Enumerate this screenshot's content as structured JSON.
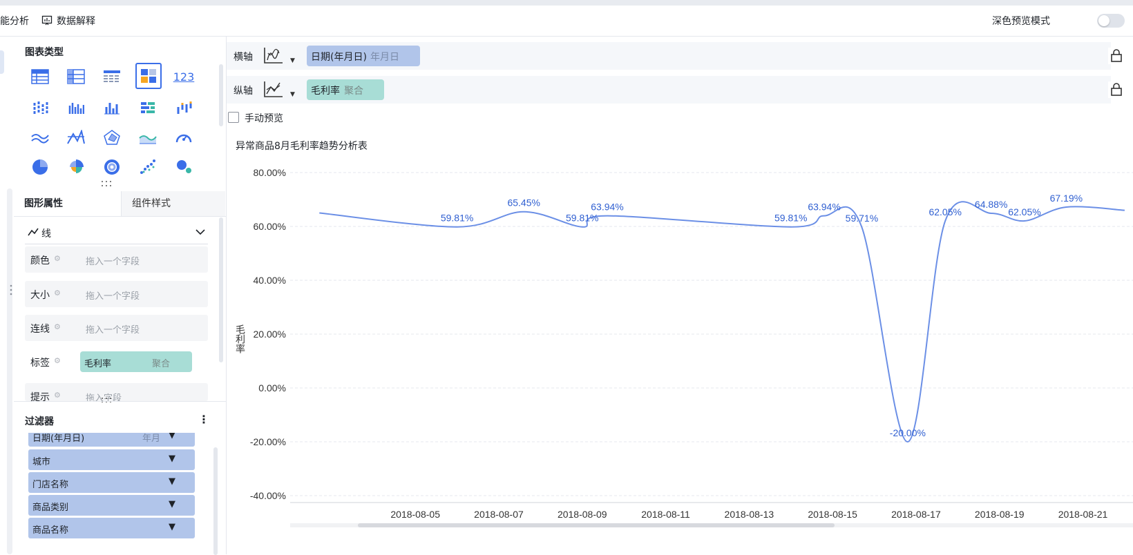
{
  "topbar": {
    "tab_analysis": "能分析",
    "data_explain": "数据解释",
    "dark_preview": "深色预览模式"
  },
  "panel": {
    "chart_type_title": "图表类型",
    "number_icon_text": "123",
    "tabs": {
      "shape_props": "图形属性",
      "component_style": "组件样式"
    },
    "mark_type": "线",
    "props": [
      {
        "label": "颜色",
        "placeholder": "拖入一个字段"
      },
      {
        "label": "大小",
        "placeholder": "拖入一个字段"
      },
      {
        "label": "连线",
        "placeholder": "拖入一个字段"
      },
      {
        "label": "标签",
        "field": "毛利率",
        "agg": "聚合"
      },
      {
        "label": "提示",
        "placeholder": "拖入字段"
      }
    ],
    "filters_title": "过滤器",
    "filters": [
      {
        "name": "日期(年月日)",
        "sub": "年月"
      },
      {
        "name": "城市"
      },
      {
        "name": "门店名称"
      },
      {
        "name": "商品类别"
      },
      {
        "name": "商品名称"
      }
    ]
  },
  "axes": {
    "x_label": "横轴",
    "x_field": "日期(年月日)",
    "x_sub": "年月日",
    "y_label": "纵轴",
    "y_field": "毛利率",
    "y_sub": "聚合"
  },
  "manual_preview": "手动预览",
  "colors": {
    "accent": "#3a6ee8",
    "line": "#6b8fe6",
    "label": "#2f5fd1",
    "x_field_bg": "#b1c5ea",
    "y_field_bg": "#a8ddd6"
  },
  "chart_data": {
    "type": "line",
    "title": "异常商品8月毛利率趋势分析表",
    "xlabel": "",
    "ylabel": "毛利率",
    "ylim": [
      -40,
      80
    ],
    "y_ticks": [
      "80.00%",
      "60.00%",
      "40.00%",
      "20.00%",
      "0.00%",
      "-20.00%",
      "-40.00%"
    ],
    "x_ticks": [
      "2018-08-05",
      "2018-08-07",
      "2018-08-09",
      "2018-08-11",
      "2018-08-13",
      "2018-08-15",
      "2018-08-17",
      "2018-08-19",
      "2018-08-21"
    ],
    "series": [
      {
        "name": "毛利率",
        "x": [
          2.7,
          6,
          7.6,
          9,
          9.6,
          14,
          14.8,
          15.7,
          16.8,
          17.7,
          18.8,
          19.6,
          20.6,
          22
        ],
        "values": [
          65,
          59.81,
          65.45,
          59.81,
          63.94,
          59.81,
          63.94,
          59.71,
          -20.0,
          62.05,
          64.88,
          62.05,
          67.19,
          66
        ],
        "labels": [
          "",
          "59.81%",
          "65.45%",
          "59.81%",
          "63.94%",
          "59.81%",
          "63.94%",
          "59.71%",
          "-20.00%",
          "62.05%",
          "64.88%",
          "62.05%",
          "67.19%",
          ""
        ]
      }
    ]
  }
}
